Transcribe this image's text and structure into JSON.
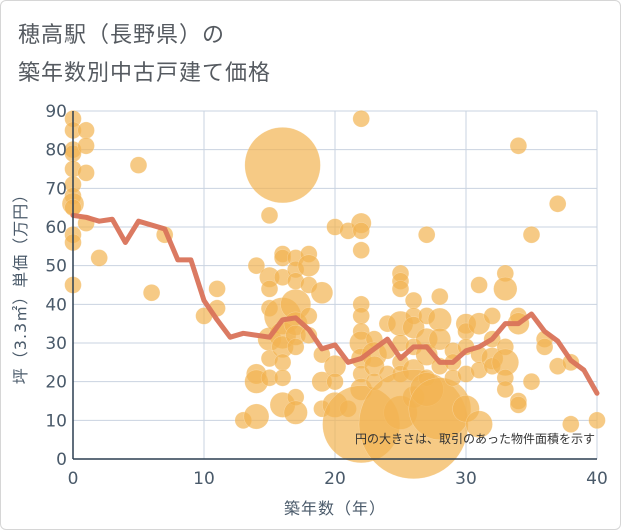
{
  "chart_data": {
    "type": "scatter",
    "title_lines": [
      "穂高駅（長野県）の",
      "築年数別中古戸建て価格"
    ],
    "xlabel": "築年数（年）",
    "ylabel": "坪（3.3㎡）単価（万円）",
    "xlim": [
      0,
      40
    ],
    "ylim": [
      0,
      90
    ],
    "xticks": [
      0,
      10,
      20,
      30,
      40
    ],
    "yticks": [
      0,
      10,
      20,
      30,
      40,
      50,
      60,
      70,
      80,
      90
    ],
    "note": "円の大きさは、取引のあった物件面積を示す",
    "colors": {
      "bubble": "#f2b451",
      "line": "#d9735a",
      "grid": "#c9d3e0",
      "axis": "#2c3e50"
    },
    "bubble_scale": "radius_units",
    "points": [
      {
        "x": 0,
        "y": 88,
        "r": 1
      },
      {
        "x": 0,
        "y": 85,
        "r": 1
      },
      {
        "x": 0,
        "y": 80,
        "r": 1
      },
      {
        "x": 0,
        "y": 79,
        "r": 1
      },
      {
        "x": 0,
        "y": 75,
        "r": 1
      },
      {
        "x": 0,
        "y": 71,
        "r": 1
      },
      {
        "x": 0,
        "y": 68,
        "r": 1
      },
      {
        "x": 0,
        "y": 66,
        "r": 1.3
      },
      {
        "x": 0,
        "y": 65,
        "r": 1
      },
      {
        "x": 0,
        "y": 58,
        "r": 1
      },
      {
        "x": 0,
        "y": 56,
        "r": 1
      },
      {
        "x": 0,
        "y": 45,
        "r": 1
      },
      {
        "x": 1,
        "y": 85,
        "r": 1
      },
      {
        "x": 1,
        "y": 81,
        "r": 1
      },
      {
        "x": 1,
        "y": 74,
        "r": 1
      },
      {
        "x": 1,
        "y": 61,
        "r": 1
      },
      {
        "x": 2,
        "y": 52,
        "r": 1
      },
      {
        "x": 5,
        "y": 76,
        "r": 1
      },
      {
        "x": 6,
        "y": 43,
        "r": 1
      },
      {
        "x": 7,
        "y": 58,
        "r": 1
      },
      {
        "x": 10,
        "y": 37,
        "r": 1
      },
      {
        "x": 11,
        "y": 44,
        "r": 1
      },
      {
        "x": 11,
        "y": 39,
        "r": 1
      },
      {
        "x": 13,
        "y": 10,
        "r": 1
      },
      {
        "x": 14,
        "y": 50,
        "r": 1
      },
      {
        "x": 14,
        "y": 22,
        "r": 1.2
      },
      {
        "x": 14,
        "y": 20,
        "r": 1.4
      },
      {
        "x": 14,
        "y": 11,
        "r": 1.5
      },
      {
        "x": 15,
        "y": 63,
        "r": 1
      },
      {
        "x": 15,
        "y": 47,
        "r": 1.2
      },
      {
        "x": 15,
        "y": 44,
        "r": 1
      },
      {
        "x": 15,
        "y": 39,
        "r": 1
      },
      {
        "x": 15,
        "y": 31,
        "r": 1.4
      },
      {
        "x": 15,
        "y": 26,
        "r": 1
      },
      {
        "x": 15,
        "y": 21,
        "r": 1
      },
      {
        "x": 16,
        "y": 76,
        "r": 4.5
      },
      {
        "x": 16,
        "y": 53,
        "r": 1
      },
      {
        "x": 16,
        "y": 52,
        "r": 1
      },
      {
        "x": 16,
        "y": 47,
        "r": 1
      },
      {
        "x": 16,
        "y": 37,
        "r": 2.2
      },
      {
        "x": 16,
        "y": 32,
        "r": 1.6
      },
      {
        "x": 16,
        "y": 29,
        "r": 1.3
      },
      {
        "x": 16,
        "y": 25,
        "r": 1
      },
      {
        "x": 16,
        "y": 21,
        "r": 1
      },
      {
        "x": 16,
        "y": 14,
        "r": 1.5
      },
      {
        "x": 17,
        "y": 52,
        "r": 1
      },
      {
        "x": 17,
        "y": 49,
        "r": 1
      },
      {
        "x": 17,
        "y": 46,
        "r": 1
      },
      {
        "x": 17,
        "y": 40,
        "r": 1.8
      },
      {
        "x": 17,
        "y": 35,
        "r": 1.4
      },
      {
        "x": 17,
        "y": 32,
        "r": 1.2
      },
      {
        "x": 17,
        "y": 29,
        "r": 1
      },
      {
        "x": 17,
        "y": 16,
        "r": 1
      },
      {
        "x": 17,
        "y": 12,
        "r": 1.4
      },
      {
        "x": 18,
        "y": 53,
        "r": 1
      },
      {
        "x": 18,
        "y": 50,
        "r": 1.3
      },
      {
        "x": 18,
        "y": 45,
        "r": 1
      },
      {
        "x": 18,
        "y": 37,
        "r": 1
      },
      {
        "x": 18,
        "y": 32,
        "r": 1
      },
      {
        "x": 19,
        "y": 43,
        "r": 1.3
      },
      {
        "x": 19,
        "y": 27,
        "r": 1
      },
      {
        "x": 19,
        "y": 20,
        "r": 1.2
      },
      {
        "x": 19,
        "y": 13,
        "r": 1
      },
      {
        "x": 20,
        "y": 60,
        "r": 1
      },
      {
        "x": 20,
        "y": 24,
        "r": 1.3
      },
      {
        "x": 20,
        "y": 20,
        "r": 1
      },
      {
        "x": 20,
        "y": 14,
        "r": 1.5
      },
      {
        "x": 21,
        "y": 59,
        "r": 1
      },
      {
        "x": 21,
        "y": 13,
        "r": 1
      },
      {
        "x": 22,
        "y": 88,
        "r": 1
      },
      {
        "x": 22,
        "y": 61,
        "r": 1.2
      },
      {
        "x": 22,
        "y": 59,
        "r": 1
      },
      {
        "x": 22,
        "y": 54,
        "r": 1
      },
      {
        "x": 22,
        "y": 40,
        "r": 1
      },
      {
        "x": 22,
        "y": 37,
        "r": 1
      },
      {
        "x": 22,
        "y": 33,
        "r": 1
      },
      {
        "x": 22,
        "y": 30,
        "r": 1.4
      },
      {
        "x": 22,
        "y": 26,
        "r": 1.2
      },
      {
        "x": 22,
        "y": 22,
        "r": 1
      },
      {
        "x": 22,
        "y": 18,
        "r": 1.3
      },
      {
        "x": 22,
        "y": 9,
        "r": 4.6
      },
      {
        "x": 23,
        "y": 31,
        "r": 1
      },
      {
        "x": 23,
        "y": 27,
        "r": 1.5
      },
      {
        "x": 23,
        "y": 24,
        "r": 1.2
      },
      {
        "x": 23,
        "y": 20,
        "r": 1
      },
      {
        "x": 24,
        "y": 35,
        "r": 1
      },
      {
        "x": 24,
        "y": 28,
        "r": 1
      },
      {
        "x": 24,
        "y": 22,
        "r": 1
      },
      {
        "x": 25,
        "y": 48,
        "r": 1
      },
      {
        "x": 25,
        "y": 46,
        "r": 1
      },
      {
        "x": 25,
        "y": 44,
        "r": 1
      },
      {
        "x": 25,
        "y": 35,
        "r": 1.5
      },
      {
        "x": 25,
        "y": 30,
        "r": 1
      },
      {
        "x": 25,
        "y": 25,
        "r": 1
      },
      {
        "x": 25,
        "y": 22,
        "r": 1
      },
      {
        "x": 25,
        "y": 12,
        "r": 2
      },
      {
        "x": 26,
        "y": 41,
        "r": 1
      },
      {
        "x": 26,
        "y": 37,
        "r": 1
      },
      {
        "x": 26,
        "y": 34,
        "r": 1.3
      },
      {
        "x": 26,
        "y": 29,
        "r": 1
      },
      {
        "x": 26,
        "y": 23,
        "r": 1.3
      },
      {
        "x": 26,
        "y": 16,
        "r": 1.3
      },
      {
        "x": 26,
        "y": 9,
        "r": 6.5
      },
      {
        "x": 27,
        "y": 58,
        "r": 1
      },
      {
        "x": 27,
        "y": 37,
        "r": 1
      },
      {
        "x": 27,
        "y": 31,
        "r": 1.3
      },
      {
        "x": 27,
        "y": 27,
        "r": 1.3
      },
      {
        "x": 27,
        "y": 21,
        "r": 1
      },
      {
        "x": 27,
        "y": 18,
        "r": 2
      },
      {
        "x": 28,
        "y": 42,
        "r": 1
      },
      {
        "x": 28,
        "y": 36,
        "r": 1.4
      },
      {
        "x": 28,
        "y": 31,
        "r": 1.3
      },
      {
        "x": 28,
        "y": 24,
        "r": 1
      },
      {
        "x": 28,
        "y": 13,
        "r": 3.7
      },
      {
        "x": 29,
        "y": 28,
        "r": 1
      },
      {
        "x": 29,
        "y": 25,
        "r": 1
      },
      {
        "x": 29,
        "y": 21,
        "r": 1
      },
      {
        "x": 30,
        "y": 35,
        "r": 1.2
      },
      {
        "x": 30,
        "y": 33,
        "r": 1
      },
      {
        "x": 30,
        "y": 29,
        "r": 1
      },
      {
        "x": 30,
        "y": 22,
        "r": 1
      },
      {
        "x": 30,
        "y": 13,
        "r": 1.6
      },
      {
        "x": 31,
        "y": 45,
        "r": 1
      },
      {
        "x": 31,
        "y": 35,
        "r": 1.3
      },
      {
        "x": 31,
        "y": 27,
        "r": 1
      },
      {
        "x": 31,
        "y": 23,
        "r": 1
      },
      {
        "x": 31,
        "y": 9,
        "r": 1.6
      },
      {
        "x": 32,
        "y": 37,
        "r": 1
      },
      {
        "x": 32,
        "y": 31,
        "r": 1
      },
      {
        "x": 32,
        "y": 26,
        "r": 1.3
      },
      {
        "x": 32,
        "y": 24,
        "r": 1
      },
      {
        "x": 33,
        "y": 48,
        "r": 1
      },
      {
        "x": 33,
        "y": 44,
        "r": 1.4
      },
      {
        "x": 33,
        "y": 29,
        "r": 1
      },
      {
        "x": 33,
        "y": 25,
        "r": 1.6
      },
      {
        "x": 33,
        "y": 21,
        "r": 1
      },
      {
        "x": 33,
        "y": 18,
        "r": 1
      },
      {
        "x": 34,
        "y": 81,
        "r": 1
      },
      {
        "x": 34,
        "y": 37,
        "r": 1
      },
      {
        "x": 34,
        "y": 35,
        "r": 1.3
      },
      {
        "x": 34,
        "y": 15,
        "r": 1
      },
      {
        "x": 34,
        "y": 14,
        "r": 1
      },
      {
        "x": 35,
        "y": 58,
        "r": 1
      },
      {
        "x": 35,
        "y": 20,
        "r": 1
      },
      {
        "x": 36,
        "y": 31,
        "r": 1
      },
      {
        "x": 36,
        "y": 29,
        "r": 1
      },
      {
        "x": 37,
        "y": 66,
        "r": 1
      },
      {
        "x": 37,
        "y": 24,
        "r": 1
      },
      {
        "x": 38,
        "y": 25,
        "r": 1
      },
      {
        "x": 38,
        "y": 9,
        "r": 1
      },
      {
        "x": 40,
        "y": 10,
        "r": 1
      }
    ],
    "line": {
      "x": [
        0,
        1,
        2,
        3,
        4,
        5,
        6,
        7,
        8,
        9,
        10,
        11,
        12,
        13,
        14,
        15,
        16,
        17,
        18,
        19,
        20,
        21,
        22,
        23,
        24,
        25,
        26,
        27,
        28,
        29,
        30,
        31,
        32,
        33,
        34,
        35,
        36,
        37,
        38,
        39,
        40
      ],
      "y": [
        63,
        62.5,
        61.5,
        62,
        56,
        61.5,
        60.5,
        59.5,
        51.5,
        51.5,
        41,
        36,
        31.5,
        32.5,
        32,
        31.5,
        36,
        36.5,
        33.5,
        28.5,
        29.5,
        25,
        26,
        28.5,
        31,
        26,
        29,
        29,
        25,
        25,
        28,
        29,
        31,
        35,
        35,
        37.5,
        33,
        30.5,
        25.5,
        23,
        17
      ]
    }
  }
}
